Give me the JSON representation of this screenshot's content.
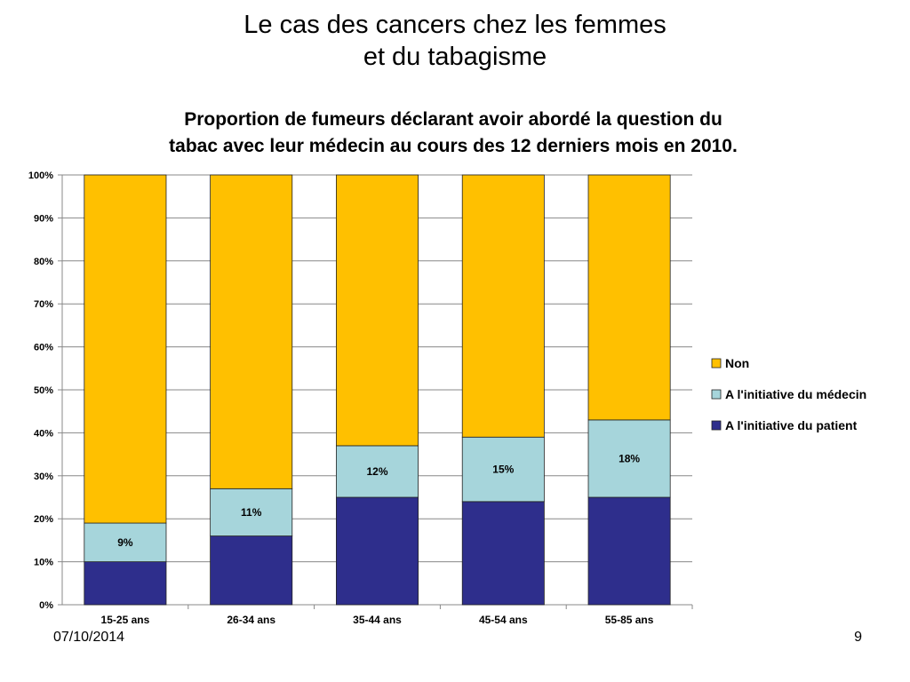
{
  "slide": {
    "title_line1": "Le cas des cancers chez les femmes",
    "title_line2": "et du tabagisme",
    "date": "07/10/2014",
    "page_number": "9"
  },
  "chart_data": {
    "type": "bar",
    "stacked": true,
    "title_line1": "Proportion de fumeurs déclarant avoir abordé la question du",
    "title_line2": "tabac avec leur médecin au cours des 12 derniers mois en 2010.",
    "categories": [
      "15-25 ans",
      "26-34 ans",
      "35-44 ans",
      "45-54 ans",
      "55-85 ans"
    ],
    "series": [
      {
        "name": "A l'initiative du patient",
        "values": [
          10,
          16,
          25,
          24,
          25
        ],
        "color": "#2E2E8C",
        "show_labels": false
      },
      {
        "name": "A l'initiative du médecin",
        "values": [
          9,
          11,
          12,
          15,
          18
        ],
        "color": "#A6D5DB",
        "show_labels": true
      },
      {
        "name": "Non",
        "values": [
          81,
          73,
          63,
          61,
          57
        ],
        "color": "#FFC000",
        "show_labels": false
      }
    ],
    "ylim": [
      0,
      100
    ],
    "yticks": [
      "0%",
      "10%",
      "20%",
      "30%",
      "40%",
      "50%",
      "60%",
      "70%",
      "80%",
      "90%",
      "100%"
    ],
    "grid": true,
    "legend_position": "right",
    "legend_order": [
      "Non",
      "A l'initiative du médecin",
      "A l'initiative du patient"
    ]
  }
}
